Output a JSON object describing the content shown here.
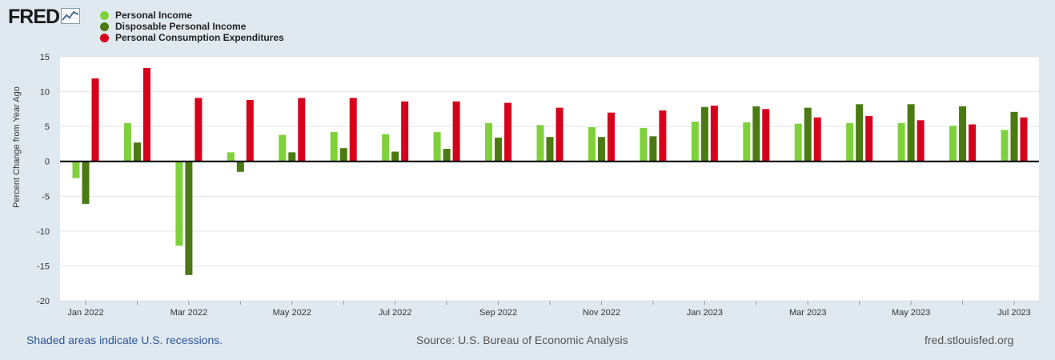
{
  "header": {
    "logo_text": "FRED",
    "logo_icon": "fred-graph-icon"
  },
  "legend": [
    {
      "label": "Personal Income",
      "color": "#7fd13b"
    },
    {
      "label": "Disposable Personal Income",
      "color": "#4b7a12"
    },
    {
      "label": "Personal Consumption Expenditures",
      "color": "#d6001c"
    }
  ],
  "footer": {
    "recession_note": "Shaded areas indicate U.S. recessions.",
    "source": "Source: U.S. Bureau of Economic Analysis",
    "site": "fred.stlouisfed.org"
  },
  "chart_data": {
    "type": "bar",
    "title": "",
    "xlabel": "",
    "ylabel": "Percent Change from Year Ago",
    "ylim": [
      -20,
      15
    ],
    "yticks": [
      15,
      10,
      5,
      0,
      -5,
      -10,
      -15,
      -20
    ],
    "grid": true,
    "legend_position": "top-left",
    "categories": [
      "Jan 2022",
      "Feb 2022",
      "Mar 2022",
      "Apr 2022",
      "May 2022",
      "Jun 2022",
      "Jul 2022",
      "Aug 2022",
      "Sep 2022",
      "Oct 2022",
      "Nov 2022",
      "Dec 2022",
      "Jan 2023",
      "Feb 2023",
      "Mar 2023",
      "Apr 2023",
      "May 2023",
      "Jun 2023",
      "Jul 2023"
    ],
    "xticklabels": [
      "Jan 2022",
      "",
      "Mar 2022",
      "",
      "May 2022",
      "",
      "Jul 2022",
      "",
      "Sep 2022",
      "",
      "Nov 2022",
      "",
      "Jan 2023",
      "",
      "Mar 2023",
      "",
      "May 2023",
      "",
      "Jul 2023"
    ],
    "series": [
      {
        "name": "Personal Income",
        "color": "#7fd13b",
        "values": [
          -2.4,
          5.5,
          -12.1,
          1.3,
          3.8,
          4.2,
          3.9,
          4.2,
          5.5,
          5.2,
          4.9,
          4.8,
          5.7,
          5.6,
          5.4,
          5.5,
          5.5,
          5.1,
          4.5
        ]
      },
      {
        "name": "Disposable Personal Income",
        "color": "#4b7a12",
        "values": [
          -6.1,
          2.7,
          -16.3,
          -1.5,
          1.3,
          1.9,
          1.4,
          1.8,
          3.4,
          3.5,
          3.5,
          3.6,
          7.8,
          7.9,
          7.7,
          8.2,
          8.2,
          7.9,
          7.1
        ]
      },
      {
        "name": "Personal Consumption Expenditures",
        "color": "#d6001c",
        "values": [
          11.9,
          13.4,
          9.1,
          8.8,
          9.1,
          9.1,
          8.6,
          8.6,
          8.4,
          7.7,
          7.0,
          7.3,
          8.0,
          7.5,
          6.3,
          6.5,
          5.9,
          5.3,
          6.3
        ]
      }
    ]
  }
}
